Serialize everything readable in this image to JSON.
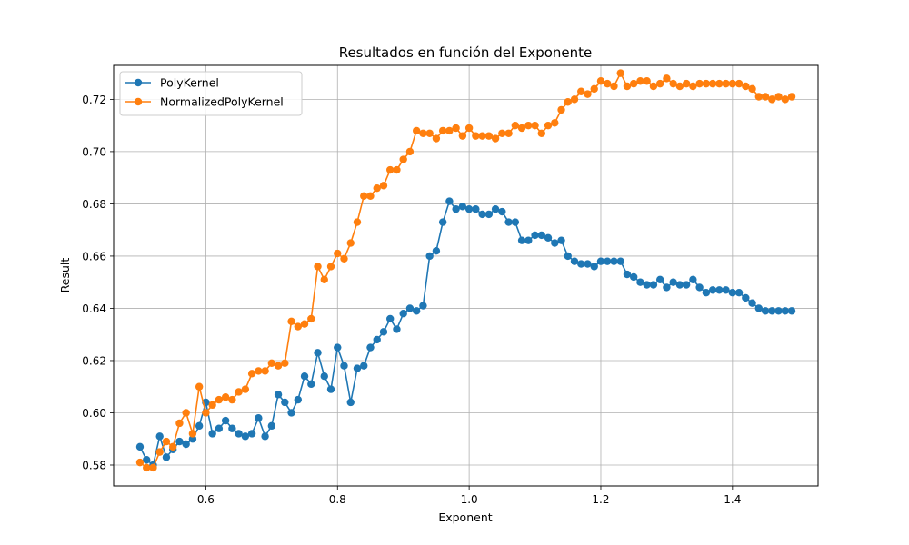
{
  "chart_data": {
    "type": "line",
    "title": "Resultados en función del Exponente",
    "xlabel": "Exponent",
    "ylabel": "Result",
    "xlim": [
      0.46,
      1.53
    ],
    "ylim": [
      0.572,
      0.733
    ],
    "xticks": [
      0.6,
      0.8,
      1.0,
      1.2,
      1.4
    ],
    "xtick_labels": [
      "0.6",
      "0.8",
      "1.0",
      "1.2",
      "1.4"
    ],
    "yticks": [
      0.58,
      0.6,
      0.62,
      0.64,
      0.66,
      0.68,
      0.7,
      0.72
    ],
    "ytick_labels": [
      "0.58",
      "0.60",
      "0.62",
      "0.64",
      "0.66",
      "0.68",
      "0.70",
      "0.72"
    ],
    "grid": true,
    "legend_position": "top-left",
    "x": [
      0.5,
      0.51,
      0.52,
      0.53,
      0.54,
      0.55,
      0.56,
      0.57,
      0.58,
      0.59,
      0.6,
      0.61,
      0.62,
      0.63,
      0.64,
      0.65,
      0.66,
      0.67,
      0.68,
      0.69,
      0.7,
      0.71,
      0.72,
      0.73,
      0.74,
      0.75,
      0.76,
      0.77,
      0.78,
      0.79,
      0.8,
      0.81,
      0.82,
      0.83,
      0.84,
      0.85,
      0.86,
      0.87,
      0.88,
      0.89,
      0.9,
      0.91,
      0.92,
      0.93,
      0.94,
      0.95,
      0.96,
      0.97,
      0.98,
      0.99,
      1.0,
      1.01,
      1.02,
      1.03,
      1.04,
      1.05,
      1.06,
      1.07,
      1.08,
      1.09,
      1.1,
      1.11,
      1.12,
      1.13,
      1.14,
      1.15,
      1.16,
      1.17,
      1.18,
      1.19,
      1.2,
      1.21,
      1.22,
      1.23,
      1.24,
      1.25,
      1.26,
      1.27,
      1.28,
      1.29,
      1.3,
      1.31,
      1.32,
      1.33,
      1.34,
      1.35,
      1.36,
      1.37,
      1.38,
      1.39,
      1.4,
      1.41,
      1.42,
      1.43,
      1.44,
      1.45,
      1.46,
      1.47,
      1.48,
      1.49
    ],
    "series": [
      {
        "name": "PolyKernel",
        "color": "#1f77b4",
        "values": [
          0.587,
          0.582,
          0.58,
          0.591,
          0.583,
          0.586,
          0.589,
          0.588,
          0.59,
          0.595,
          0.604,
          0.592,
          0.594,
          0.597,
          0.594,
          0.592,
          0.591,
          0.592,
          0.598,
          0.591,
          0.595,
          0.607,
          0.604,
          0.6,
          0.605,
          0.614,
          0.611,
          0.623,
          0.614,
          0.609,
          0.625,
          0.618,
          0.604,
          0.617,
          0.618,
          0.625,
          0.628,
          0.631,
          0.636,
          0.632,
          0.638,
          0.64,
          0.639,
          0.641,
          0.66,
          0.662,
          0.673,
          0.681,
          0.678,
          0.679,
          0.678,
          0.678,
          0.676,
          0.676,
          0.678,
          0.677,
          0.673,
          0.673,
          0.666,
          0.666,
          0.668,
          0.668,
          0.667,
          0.665,
          0.666,
          0.66,
          0.658,
          0.657,
          0.657,
          0.656,
          0.658,
          0.658,
          0.658,
          0.658,
          0.653,
          0.652,
          0.65,
          0.649,
          0.649,
          0.651,
          0.648,
          0.65,
          0.649,
          0.649,
          0.651,
          0.648,
          0.646,
          0.647,
          0.647,
          0.647,
          0.646,
          0.646,
          0.644,
          0.642,
          0.64,
          0.639,
          0.639,
          0.639,
          0.639,
          0.639
        ]
      },
      {
        "name": "NormalizedPolyKernel",
        "color": "#ff7f0e",
        "values": [
          0.581,
          0.579,
          0.579,
          0.585,
          0.589,
          0.587,
          0.596,
          0.6,
          0.592,
          0.61,
          0.6,
          0.603,
          0.605,
          0.606,
          0.605,
          0.608,
          0.609,
          0.615,
          0.616,
          0.616,
          0.619,
          0.618,
          0.619,
          0.635,
          0.633,
          0.634,
          0.636,
          0.656,
          0.651,
          0.656,
          0.661,
          0.659,
          0.665,
          0.673,
          0.683,
          0.683,
          0.686,
          0.687,
          0.693,
          0.693,
          0.697,
          0.7,
          0.708,
          0.707,
          0.707,
          0.705,
          0.708,
          0.708,
          0.709,
          0.706,
          0.709,
          0.706,
          0.706,
          0.706,
          0.705,
          0.707,
          0.707,
          0.71,
          0.709,
          0.71,
          0.71,
          0.707,
          0.71,
          0.711,
          0.716,
          0.719,
          0.72,
          0.723,
          0.722,
          0.724,
          0.727,
          0.726,
          0.725,
          0.73,
          0.725,
          0.726,
          0.727,
          0.727,
          0.725,
          0.726,
          0.728,
          0.726,
          0.725,
          0.726,
          0.725,
          0.726,
          0.726,
          0.726,
          0.726,
          0.726,
          0.726,
          0.726,
          0.725,
          0.724,
          0.721,
          0.721,
          0.72,
          0.721,
          0.72,
          0.721
        ]
      }
    ]
  }
}
